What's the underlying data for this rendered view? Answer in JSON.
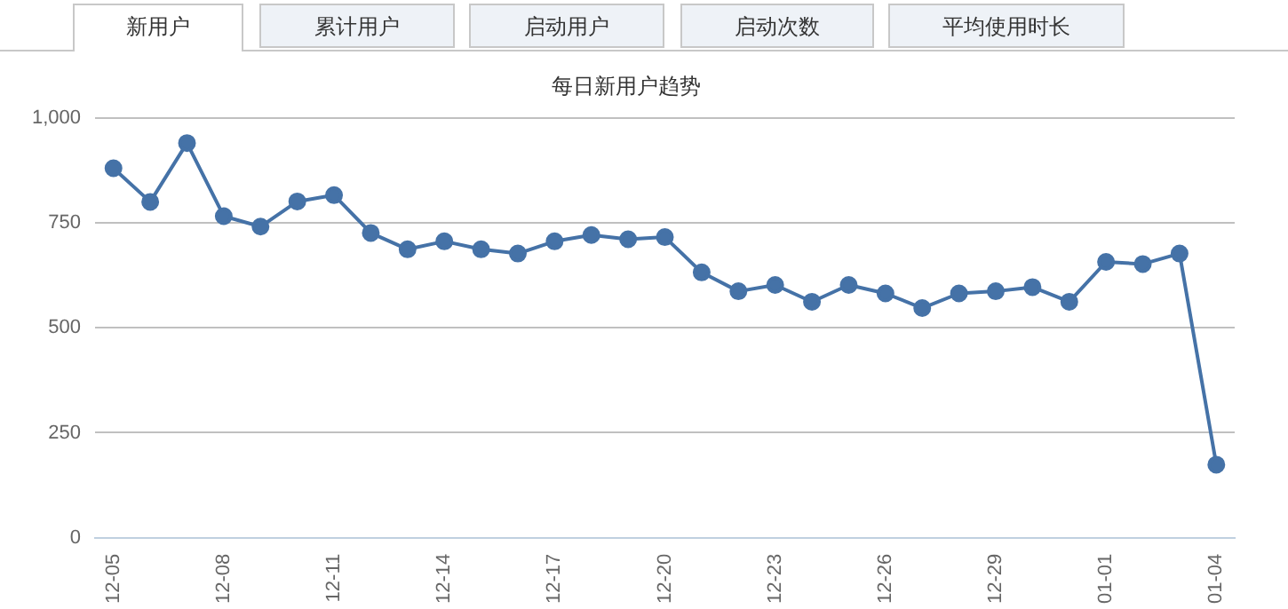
{
  "chart_data": {
    "type": "line",
    "title": "每日新用户趋势",
    "annotations": [
      "新用户",
      "累计用户",
      "启动用户",
      "启动次数",
      "平均使用时长"
    ],
    "categories": [
      "12-05",
      null,
      null,
      "12-08",
      null,
      null,
      "12-11",
      null,
      null,
      "12-14",
      null,
      null,
      "12-17",
      null,
      null,
      "12-20",
      null,
      null,
      "12-23",
      null,
      null,
      "12-26",
      null,
      null,
      "12-29",
      null,
      null,
      "01-01",
      null,
      null,
      "01-04"
    ],
    "series": [
      {
        "color": "#4572a7",
        "values": [
          880,
          800,
          940,
          766,
          741,
          801,
          816,
          726,
          687,
          706,
          687,
          677,
          706,
          721,
          711,
          716,
          632,
          587,
          602,
          562,
          602,
          582,
          547,
          582,
          587,
          597,
          562,
          657,
          652,
          677,
          174
        ]
      }
    ],
    "ylim": [
      0,
      1000
    ],
    "yticks": [
      0,
      250,
      500,
      750,
      {
        "value": 1000,
        "label": "1,000"
      }
    ],
    "grid": "y",
    "marker": "circle",
    "line_style": "solid",
    "legend": false
  }
}
